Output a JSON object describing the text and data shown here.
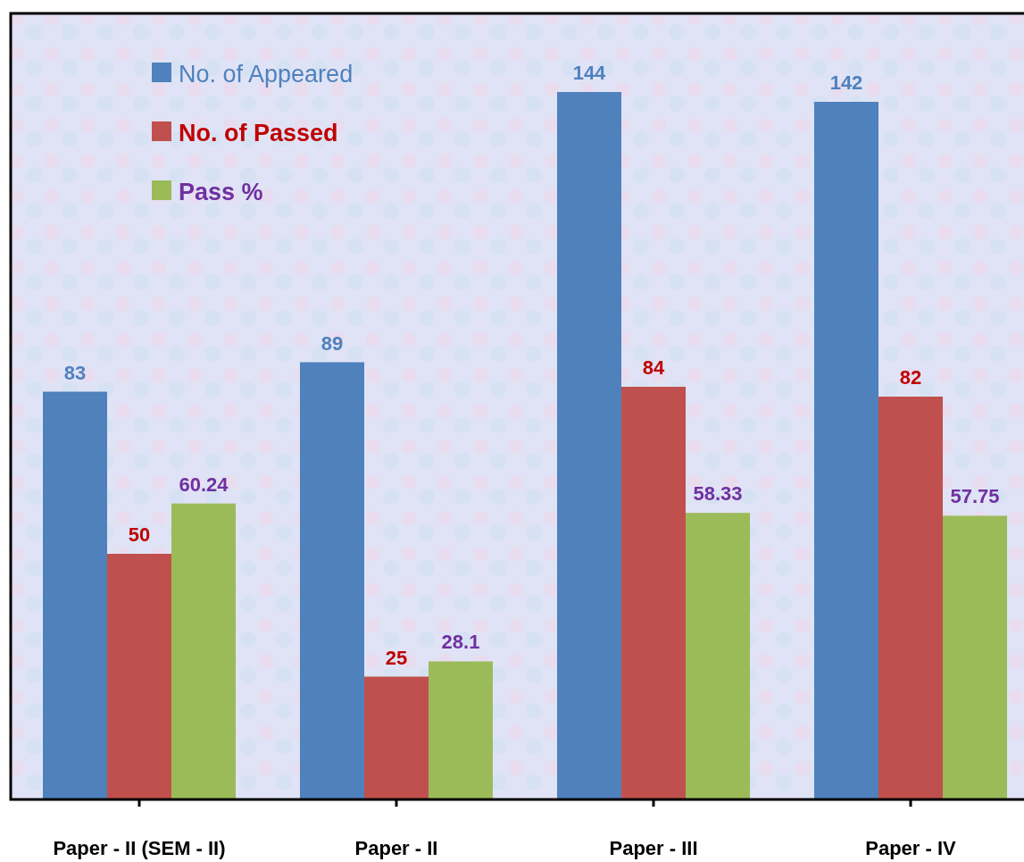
{
  "chart_data": {
    "type": "bar",
    "categories": [
      "Paper - II (SEM - II)",
      "Paper - II",
      "Paper - III",
      "Paper - IV"
    ],
    "series": [
      {
        "name": "No. of Appeared",
        "color": "#4f81bd",
        "values": [
          83,
          89,
          144,
          142
        ]
      },
      {
        "name": "No. of Passed",
        "color": "#c0504d",
        "values": [
          50,
          25,
          84,
          82
        ]
      },
      {
        "name": "Pass %",
        "color": "#9bbb59",
        "values": [
          60.24,
          28.1,
          58.33,
          57.75
        ]
      }
    ],
    "ylim": [
      0,
      160
    ],
    "data_labels": true,
    "legend": "top left",
    "tick_labels": "x"
  }
}
